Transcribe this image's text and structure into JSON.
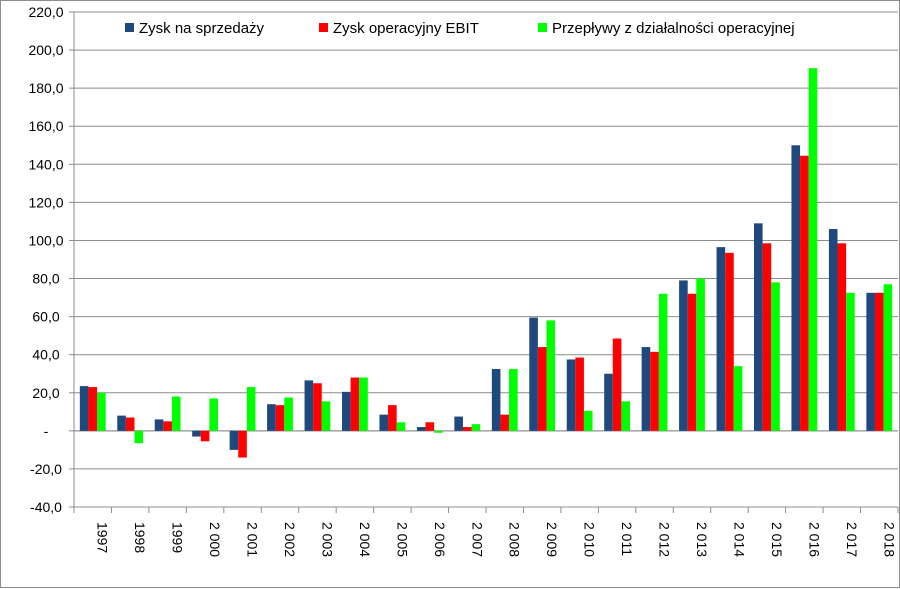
{
  "chart_data": {
    "type": "bar",
    "title": "",
    "xlabel": "",
    "ylabel": "",
    "ylim": [
      -40,
      220
    ],
    "y_step": 20,
    "y_tick_labels": [
      "-40,0",
      "-20,0",
      "-",
      "20,0",
      "40,0",
      "60,0",
      "80,0",
      "100,0",
      "120,0",
      "140,0",
      "160,0",
      "180,0",
      "200,0",
      "220,0"
    ],
    "grid": "horizontal",
    "legend_position": "top",
    "categories": [
      "1997",
      "1998",
      "1999",
      "2 000",
      "2 001",
      "2 002",
      "2 003",
      "2 004",
      "2 005",
      "2 006",
      "2 007",
      "2 008",
      "2 009",
      "2 010",
      "2 011",
      "2 012",
      "2 013",
      "2 014",
      "2 015",
      "2 016",
      "2 017",
      "2 018"
    ],
    "series": [
      {
        "name": "Zysk na sprzedaży",
        "color": "#1f497d",
        "values": [
          23.5,
          8.0,
          6.0,
          -3.0,
          -10.0,
          14.0,
          26.5,
          20.5,
          8.5,
          2.0,
          7.5,
          32.5,
          59.5,
          37.5,
          30.0,
          44.0,
          79.0,
          96.5,
          109.0,
          150.0,
          106.0,
          72.5
        ]
      },
      {
        "name": "Zysk operacyjny EBIT",
        "color": "#ff0000",
        "values": [
          23.0,
          7.0,
          5.0,
          -5.5,
          -14.0,
          13.5,
          25.0,
          28.0,
          13.5,
          4.5,
          2.0,
          8.5,
          44.0,
          38.5,
          48.5,
          41.5,
          72.0,
          93.5,
          98.5,
          144.5,
          98.5,
          72.5
        ]
      },
      {
        "name": "Przepływy z działalności operacyjnej",
        "color": "#00ff00",
        "values": [
          20.0,
          -6.5,
          18.0,
          17.0,
          23.0,
          17.5,
          15.5,
          28.0,
          4.5,
          -1.0,
          3.5,
          32.5,
          58.0,
          10.5,
          15.5,
          72.0,
          80.0,
          34.0,
          78.0,
          190.5,
          72.5,
          77.0
        ]
      }
    ]
  }
}
